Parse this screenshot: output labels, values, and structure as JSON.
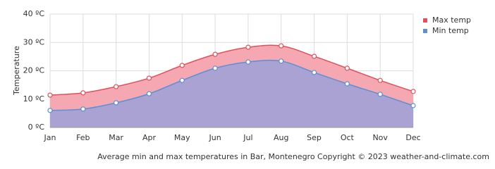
{
  "chart_data": {
    "type": "area",
    "y_label": "Temperature",
    "footer": "Average min and max temperatures in Bar, Montenegro   Copyright © 2023  weather-and-climate.com",
    "categories": [
      "Jan",
      "Feb",
      "Mar",
      "Apr",
      "May",
      "Jun",
      "Jul",
      "Aug",
      "Sep",
      "Oct",
      "Nov",
      "Dec"
    ],
    "series": [
      {
        "name": "Max temp",
        "color": "#e0505a",
        "fill": "#f5a8b2",
        "values": [
          11.4,
          12.2,
          14.4,
          17.4,
          21.9,
          25.8,
          28.3,
          28.8,
          25.1,
          20.9,
          16.6,
          12.7
        ]
      },
      {
        "name": "Min temp",
        "color": "#5b8fd6",
        "fill": "#aaa2d2",
        "values": [
          6.0,
          6.5,
          8.7,
          11.9,
          16.6,
          20.9,
          23.1,
          23.4,
          19.4,
          15.4,
          11.7,
          7.7
        ]
      }
    ],
    "ylim": [
      0,
      40
    ],
    "yticks": [
      {
        "value": 0,
        "label": "0 ºC"
      },
      {
        "value": 10,
        "label": "10 ºC"
      },
      {
        "value": 20,
        "label": "20 ºC"
      },
      {
        "value": 30,
        "label": "30 ºC"
      },
      {
        "value": 40,
        "label": "40 ºC"
      }
    ],
    "grid": true,
    "legend": "top-right"
  }
}
